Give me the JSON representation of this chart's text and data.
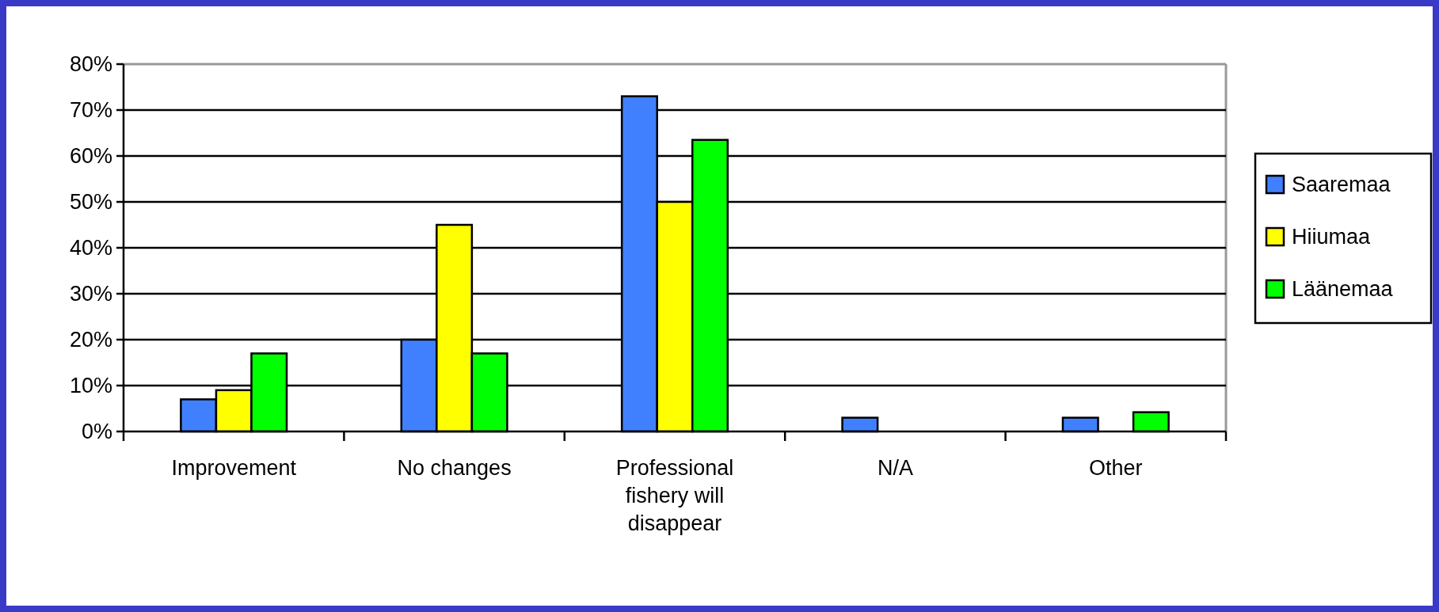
{
  "chart_data": {
    "type": "bar",
    "categories": [
      "Improvement",
      "No changes",
      "Professional fishery will disappear",
      "N/A",
      "Other"
    ],
    "series": [
      {
        "name": "Saaremaa",
        "color": "#4080ff",
        "values": [
          7,
          20,
          73,
          3,
          3
        ]
      },
      {
        "name": "Hiiumaa",
        "color": "#ffff00",
        "values": [
          9,
          45,
          50,
          0,
          0
        ]
      },
      {
        "name": "Läänemaa",
        "color": "#00ff00",
        "values": [
          17,
          17,
          63.5,
          0,
          4.2
        ]
      }
    ],
    "ylim": [
      0,
      80
    ],
    "yticks": [
      {
        "value": 0,
        "label": "0%"
      },
      {
        "value": 10,
        "label": "10%"
      },
      {
        "value": 20,
        "label": "20%"
      },
      {
        "value": 30,
        "label": "30%"
      },
      {
        "value": 40,
        "label": "40%"
      },
      {
        "value": 50,
        "label": "50%"
      },
      {
        "value": 60,
        "label": "60%"
      },
      {
        "value": 70,
        "label": "70%"
      },
      {
        "value": 80,
        "label": "80%"
      }
    ],
    "grid": "y",
    "legend": "right"
  }
}
